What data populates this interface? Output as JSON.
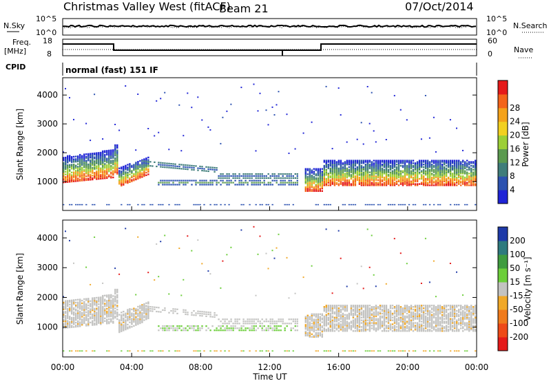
{
  "header": {
    "title": "Christmas Valley West (fitACF)",
    "beam": "Beam 21",
    "date": "07/Oct/2014"
  },
  "panels": {
    "nsky": {
      "label": "N.Sky",
      "ticks": [
        "10^5",
        "10^0"
      ]
    },
    "nsearch": {
      "label": "N.Search",
      "ticks": [
        "10^5",
        "10^0"
      ]
    },
    "freq": {
      "label_line1": "Freq.",
      "label_line2": "[MHz]",
      "ticks": [
        "18",
        "8"
      ]
    },
    "nave": {
      "label": "Nave",
      "ticks": [
        "60",
        "0"
      ]
    },
    "cpid": {
      "label": "CPID",
      "value": "normal (fast) 151 IF"
    }
  },
  "chart_data": [
    {
      "type": "heatmap",
      "name": "power",
      "xlabel": "",
      "ylabel": "Slant Range [km]",
      "x_ticks": [
        "00:00",
        "04:00",
        "08:00",
        "12:00",
        "16:00",
        "20:00",
        "00:00"
      ],
      "y_ticks": [
        1000,
        2000,
        3000,
        4000
      ],
      "colorbar": {
        "label": "Power [dB]",
        "ticks": [
          "4",
          "8",
          "12",
          "16",
          "20",
          "24",
          "28"
        ],
        "colors": [
          "#1f24d6",
          "#2c52b0",
          "#3f7d7a",
          "#5b9a4f",
          "#9ccf36",
          "#f2d020",
          "#f4a21a",
          "#f3641a",
          "#e51a1a"
        ]
      }
    },
    {
      "type": "heatmap",
      "name": "velocity",
      "xlabel": "Time UT",
      "ylabel": "Slant Range [km]",
      "x_ticks": [
        "00:00",
        "04:00",
        "08:00",
        "12:00",
        "16:00",
        "20:00",
        "00:00"
      ],
      "y_ticks": [
        1000,
        2000,
        3000,
        4000
      ],
      "colorbar": {
        "label": "Velocity [m s⁻¹]",
        "ticks": [
          "200",
          "100",
          "50",
          "15",
          "-15",
          "-50",
          "-100",
          "-200"
        ],
        "colors": [
          "#1e3aa8",
          "#2e7a7e",
          "#3f9c3f",
          "#6cce3a",
          "#c3c3c1",
          "#f0a828",
          "#f07b1c",
          "#ee4a18",
          "#e41a1a"
        ]
      }
    }
  ]
}
